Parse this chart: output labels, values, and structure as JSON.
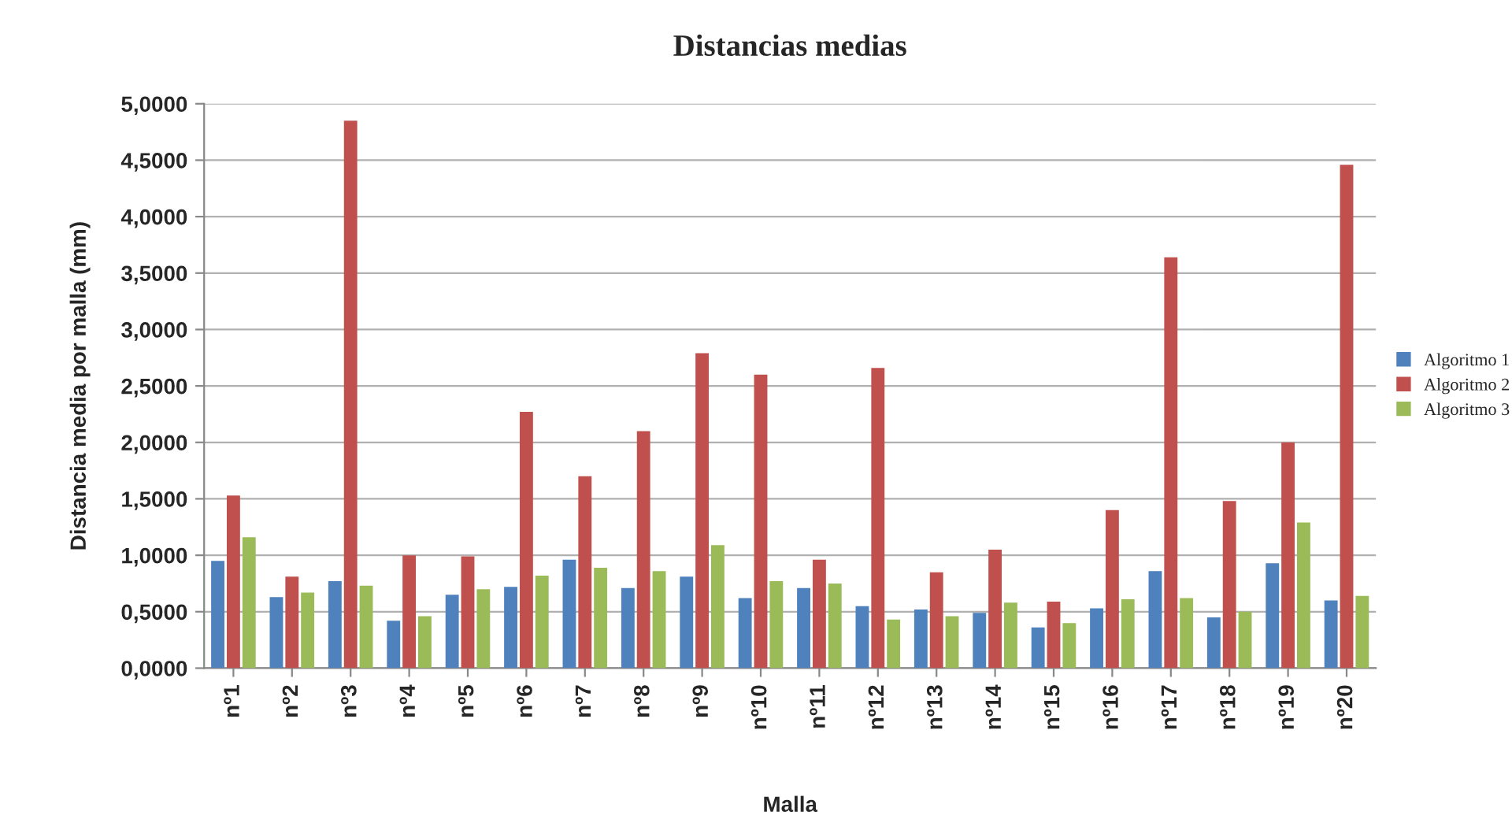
{
  "chart_data": {
    "type": "bar",
    "title": "Distancias medias",
    "xlabel": "Malla",
    "ylabel": "Distancia media por malla (mm)",
    "categories": [
      "nº1",
      "nº2",
      "nº3",
      "nº4",
      "nº5",
      "nº6",
      "nº7",
      "nº8",
      "nº9",
      "nº10",
      "nº11",
      "nº12",
      "nº13",
      "nº14",
      "nº15",
      "nº16",
      "nº17",
      "nº18",
      "nº19",
      "nº20"
    ],
    "series": [
      {
        "name": "Algoritmo 1",
        "color": "#4f81bd",
        "values": [
          0.95,
          0.63,
          0.77,
          0.42,
          0.65,
          0.72,
          0.96,
          0.71,
          0.81,
          0.62,
          0.71,
          0.55,
          0.52,
          0.49,
          0.36,
          0.53,
          0.86,
          0.45,
          0.93,
          0.6
        ]
      },
      {
        "name": "Algoritmo 2",
        "color": "#c0504d",
        "values": [
          1.53,
          0.81,
          4.85,
          1.0,
          0.99,
          2.27,
          1.7,
          2.1,
          2.79,
          2.6,
          0.96,
          2.66,
          0.85,
          1.05,
          0.59,
          1.4,
          3.64,
          1.48,
          2.0,
          4.46
        ]
      },
      {
        "name": "Algoritmo 3",
        "color": "#9bbb59",
        "values": [
          1.16,
          0.67,
          0.73,
          0.46,
          0.7,
          0.82,
          0.89,
          0.86,
          1.09,
          0.77,
          0.75,
          0.43,
          0.46,
          0.58,
          0.4,
          0.61,
          0.62,
          0.5,
          1.29,
          0.64
        ]
      }
    ],
    "ylim": [
      0,
      5
    ],
    "yticks": [
      {
        "value": 0,
        "label": "0,0000"
      },
      {
        "value": 0.5,
        "label": "0,5000"
      },
      {
        "value": 1,
        "label": "1,0000"
      },
      {
        "value": 1.5,
        "label": "1,5000"
      },
      {
        "value": 2,
        "label": "2,0000"
      },
      {
        "value": 2.5,
        "label": "2,5000"
      },
      {
        "value": 3,
        "label": "3,0000"
      },
      {
        "value": 3.5,
        "label": "3,5000"
      },
      {
        "value": 4,
        "label": "4,0000"
      },
      {
        "value": 4.5,
        "label": "4,5000"
      },
      {
        "value": 5,
        "label": "5,0000"
      }
    ],
    "grid": "y",
    "legend": "right"
  }
}
